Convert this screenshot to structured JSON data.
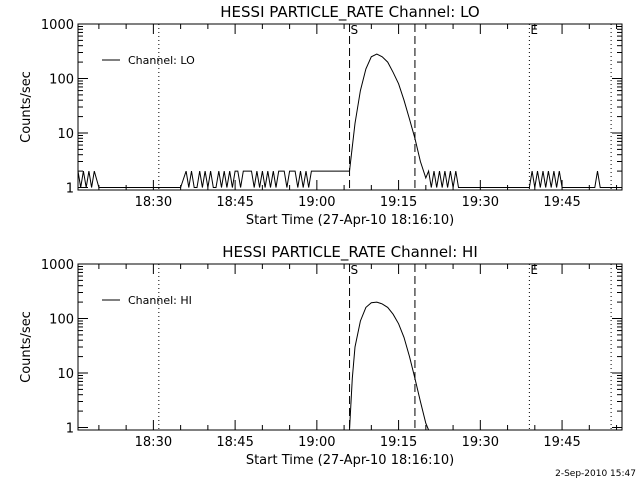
{
  "footer_timestamp": "2-Sep-2010 15:47",
  "colors": {
    "background": "#ffffff",
    "foreground": "#000000"
  },
  "chart_data": [
    {
      "type": "line",
      "title": "HESSI PARTICLE_RATE Channel: LO",
      "xlabel": "Start Time (27-Apr-10 18:16:10)",
      "ylabel": "Counts/sec",
      "yscale": "log",
      "xlim": [
        "18:16:10",
        "19:56:00"
      ],
      "ylim": [
        0.9,
        1000
      ],
      "xticks": [
        "18:30",
        "18:45",
        "19:00",
        "19:15",
        "19:30",
        "19:45"
      ],
      "yticks": [
        "1",
        "10",
        "100",
        "1000"
      ],
      "legend": {
        "label": "Channel: LO",
        "position": "top-left"
      },
      "markers": [
        {
          "label": "S",
          "time": "19:06",
          "style": "dashed"
        },
        {
          "label": "",
          "time": "19:18",
          "style": "dashed"
        },
        {
          "label": "",
          "time": "18:31",
          "style": "dotted"
        },
        {
          "label": "E",
          "time": "19:39",
          "style": "dotted"
        },
        {
          "label": "",
          "time": "19:54",
          "style": "dotted"
        }
      ],
      "series": [
        {
          "name": "Channel: LO",
          "x": [
            "18:16:10",
            "18:16:40",
            "18:17:10",
            "18:17:40",
            "18:18:10",
            "18:18:40",
            "18:19:10",
            "18:20:00",
            "18:22:00",
            "18:25:00",
            "18:30:00",
            "18:35:00",
            "18:36:00",
            "18:36:30",
            "18:37:00",
            "18:37:30",
            "18:38:00",
            "18:38:30",
            "18:39:00",
            "18:39:30",
            "18:40:00",
            "18:40:30",
            "18:41:00",
            "18:41:30",
            "18:42:00",
            "18:42:30",
            "18:43:00",
            "18:43:30",
            "18:44:00",
            "18:44:30",
            "18:45:00",
            "18:45:30",
            "18:46:00",
            "18:46:30",
            "18:47:00",
            "18:47:30",
            "18:48:00",
            "18:48:30",
            "18:49:00",
            "18:49:30",
            "18:50:00",
            "18:50:30",
            "18:51:00",
            "18:51:30",
            "18:52:00",
            "18:52:30",
            "18:53:00",
            "18:53:30",
            "18:54:00",
            "18:54:30",
            "18:55:00",
            "18:55:30",
            "18:56:00",
            "18:56:30",
            "18:57:00",
            "18:57:30",
            "18:58:00",
            "18:58:30",
            "18:59:00",
            "18:59:30",
            "19:00:00",
            "19:00:30",
            "19:01:00",
            "19:01:30",
            "19:02:00",
            "19:02:30",
            "19:03:00",
            "19:04:00",
            "19:05:00",
            "19:06:00",
            "19:07:00",
            "19:08:00",
            "19:09:00",
            "19:10:00",
            "19:11:00",
            "19:12:00",
            "19:13:00",
            "19:14:00",
            "19:15:00",
            "19:16:00",
            "19:17:00",
            "19:18:00",
            "19:19:00",
            "19:20:00",
            "19:20:30",
            "19:21:00",
            "19:21:30",
            "19:22:00",
            "19:22:30",
            "19:23:00",
            "19:23:30",
            "19:24:00",
            "19:24:30",
            "19:25:00",
            "19:25:30",
            "19:26:00",
            "19:27:00",
            "19:30:00",
            "19:35:00",
            "19:39:00",
            "19:39:30",
            "19:40:00",
            "19:40:30",
            "19:41:00",
            "19:41:30",
            "19:42:00",
            "19:42:30",
            "19:43:00",
            "19:43:30",
            "19:44:00",
            "19:44:30",
            "19:45:00",
            "19:46:00",
            "19:48:00",
            "19:50:00",
            "19:51:00",
            "19:51:30",
            "19:52:00",
            "19:53:00",
            "19:56:00"
          ],
          "y": [
            2,
            1,
            2,
            1,
            2,
            1,
            2,
            1,
            1,
            1,
            1,
            1,
            2,
            1,
            2,
            1,
            1,
            2,
            1,
            2,
            1,
            2,
            1,
            1,
            2,
            1,
            2,
            1,
            2,
            1,
            2,
            2,
            1,
            2,
            2,
            2,
            2,
            1,
            2,
            1,
            2,
            1,
            2,
            1,
            2,
            1,
            2,
            2,
            2,
            1,
            2,
            2,
            2,
            1,
            2,
            1,
            2,
            1,
            2,
            2,
            2,
            2,
            2,
            2,
            2,
            2,
            2,
            2,
            2,
            2,
            15,
            60,
            150,
            250,
            280,
            250,
            200,
            130,
            80,
            40,
            18,
            8,
            3,
            1.5,
            2,
            1,
            2,
            1,
            2,
            1,
            2,
            1,
            2,
            1,
            2,
            1,
            1,
            1,
            1,
            1,
            2,
            1,
            2,
            1,
            2,
            1,
            2,
            1,
            2,
            1,
            2,
            1,
            1,
            1,
            1,
            1,
            2,
            1,
            1,
            1
          ]
        }
      ]
    },
    {
      "type": "line",
      "title": "HESSI PARTICLE_RATE Channel: HI",
      "xlabel": "Start Time (27-Apr-10 18:16:10)",
      "ylabel": "Counts/sec",
      "yscale": "log",
      "xlim": [
        "18:16:10",
        "19:56:00"
      ],
      "ylim": [
        0.9,
        1000
      ],
      "xticks": [
        "18:30",
        "18:45",
        "19:00",
        "19:15",
        "19:30",
        "19:45"
      ],
      "yticks": [
        "1",
        "10",
        "100",
        "1000"
      ],
      "legend": {
        "label": "Channel: HI",
        "position": "top-left"
      },
      "markers": [
        {
          "label": "S",
          "time": "19:06",
          "style": "dashed"
        },
        {
          "label": "",
          "time": "19:18",
          "style": "dashed"
        },
        {
          "label": "",
          "time": "18:31",
          "style": "dotted"
        },
        {
          "label": "E",
          "time": "19:39",
          "style": "dotted"
        },
        {
          "label": "",
          "time": "19:54",
          "style": "dotted"
        }
      ],
      "series": [
        {
          "name": "Channel: HI",
          "x": [
            "19:06:00",
            "19:06:30",
            "19:07:00",
            "19:08:00",
            "19:09:00",
            "19:10:00",
            "19:11:00",
            "19:12:00",
            "19:13:00",
            "19:14:00",
            "19:15:00",
            "19:16:00",
            "19:17:00",
            "19:18:00",
            "19:19:00",
            "19:20:00",
            "19:20:30"
          ],
          "y": [
            0.9,
            8,
            30,
            90,
            160,
            195,
            200,
            185,
            160,
            120,
            80,
            45,
            20,
            8,
            3,
            1.2,
            0.9
          ]
        }
      ]
    }
  ]
}
